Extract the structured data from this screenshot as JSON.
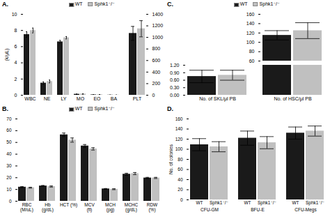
{
  "chart_data": [
    {
      "type": "bar",
      "title": "A.",
      "categories": [
        "WBC",
        "NE",
        "LY",
        "MO",
        "EO",
        "BA"
      ],
      "series": [
        {
          "name": "WT",
          "color": "#1a1a1a",
          "values": [
            7.5,
            1.5,
            6.6,
            0.12,
            0.05,
            0.02
          ],
          "errors": [
            0.35,
            0.15,
            0.18,
            0.03,
            0.015,
            0.01
          ]
        },
        {
          "name": "Sphk1⁻/⁻",
          "color": "#c0c0c0",
          "values": [
            8.0,
            1.7,
            7.1,
            0.15,
            0.07,
            0.02
          ],
          "errors": [
            0.3,
            0.18,
            0.15,
            0.03,
            0.015,
            0.01
          ]
        }
      ],
      "ylabel": "(k/μL)",
      "ylim": [
        0,
        10
      ],
      "yticks": [
        0,
        2,
        4,
        6,
        8,
        10
      ],
      "legend": "top"
    },
    {
      "type": "bar",
      "categories": [
        "PLT"
      ],
      "series": [
        {
          "name": "WT",
          "color": "#1a1a1a",
          "values": [
            1070
          ],
          "errors": [
            120
          ]
        },
        {
          "name": "Sphk1⁻/⁻",
          "color": "#c0c0c0",
          "values": [
            1150
          ],
          "errors": [
            140
          ]
        }
      ],
      "ylim": [
        0,
        1400
      ],
      "yticks": [
        0,
        200,
        400,
        600,
        800,
        1000,
        1200,
        1400
      ]
    },
    {
      "type": "bar",
      "title": "B.",
      "categories": [
        "RBC\n(M/uL)",
        "Hb\n(g/dL)",
        "HCT (%)",
        "MCV\n(fl)",
        "MCH\n(pg)",
        "MCHC\n(g/dL)",
        "RDW\n(%)"
      ],
      "series": [
        {
          "name": "WT",
          "color": "#1a1a1a",
          "values": [
            12.0,
            13.0,
            56.5,
            47.0,
            10.5,
            23.0,
            19.8
          ],
          "errors": [
            0.5,
            0.4,
            1.5,
            1.2,
            0.3,
            0.8,
            0.5
          ]
        },
        {
          "name": "Sphk1⁻/⁻",
          "color": "#c0c0c0",
          "values": [
            11.5,
            12.5,
            52.0,
            44.5,
            10.2,
            23.5,
            19.8
          ],
          "errors": [
            0.4,
            0.5,
            1.8,
            1.0,
            0.4,
            0.9,
            0.5
          ]
        }
      ],
      "ylim": [
        0,
        70
      ],
      "yticks": [
        0,
        10,
        20,
        30,
        40,
        50,
        60,
        70
      ],
      "legend": "top"
    },
    {
      "type": "bar",
      "title": "C.",
      "categories": [
        null,
        null
      ],
      "series": [
        {
          "name": "WT",
          "color": "#1a1a1a",
          "values": [
            null,
            115.0
          ],
          "errors": [
            null,
            10.0
          ]
        },
        {
          "name": "Sphk1⁻/⁻",
          "color": "#c0c0c0",
          "values": [
            null,
            125.0
          ],
          "errors": [
            null,
            17.0
          ]
        }
      ],
      "ylim": [
        60,
        160
      ],
      "yticks": [
        60,
        80,
        100,
        120,
        140,
        160
      ],
      "legend": "top",
      "tick_labels": "y"
    },
    {
      "type": "bar",
      "categories": [
        "No. of SKL/μl PB",
        "No. of HSC/μl PB"
      ],
      "series": [
        {
          "name": "WT",
          "color": "#1a1a1a",
          "values": [
            0.75,
            1.2
          ],
          "errors": [
            0.25,
            null
          ]
        },
        {
          "name": "Sphk1⁻/⁻",
          "color": "#c0c0c0",
          "values": [
            0.8,
            1.2
          ],
          "errors": [
            0.2,
            null
          ]
        }
      ],
      "ylim": [
        0,
        1.2
      ],
      "yticks": [
        {
          "value": 0,
          "label": "0.00"
        },
        {
          "value": 0.3,
          "label": "0.30"
        },
        {
          "value": 0.6,
          "label": "0.60"
        },
        {
          "value": 0.9,
          "label": "0.90"
        },
        {
          "value": 1.2,
          "label": "1.20"
        }
      ]
    },
    {
      "type": "bar",
      "title": "D.",
      "categories": [
        "CFU-GM",
        "BFU-E",
        "CFU-Megs"
      ],
      "series": [
        {
          "name": "WT",
          "color": "#1a1a1a",
          "values": [
            109,
            122,
            132
          ],
          "errors": [
            12,
            14,
            12
          ]
        },
        {
          "name": "Sphk1⁻/⁻",
          "color": "#c0c0c0",
          "values": [
            105,
            113,
            136
          ],
          "errors": [
            10,
            12,
            10
          ]
        }
      ],
      "ylabel": "No. of colonies",
      "ylim": [
        0,
        160
      ],
      "yticks": [
        0,
        20,
        40,
        60,
        80,
        100,
        120,
        140,
        160
      ]
    }
  ]
}
